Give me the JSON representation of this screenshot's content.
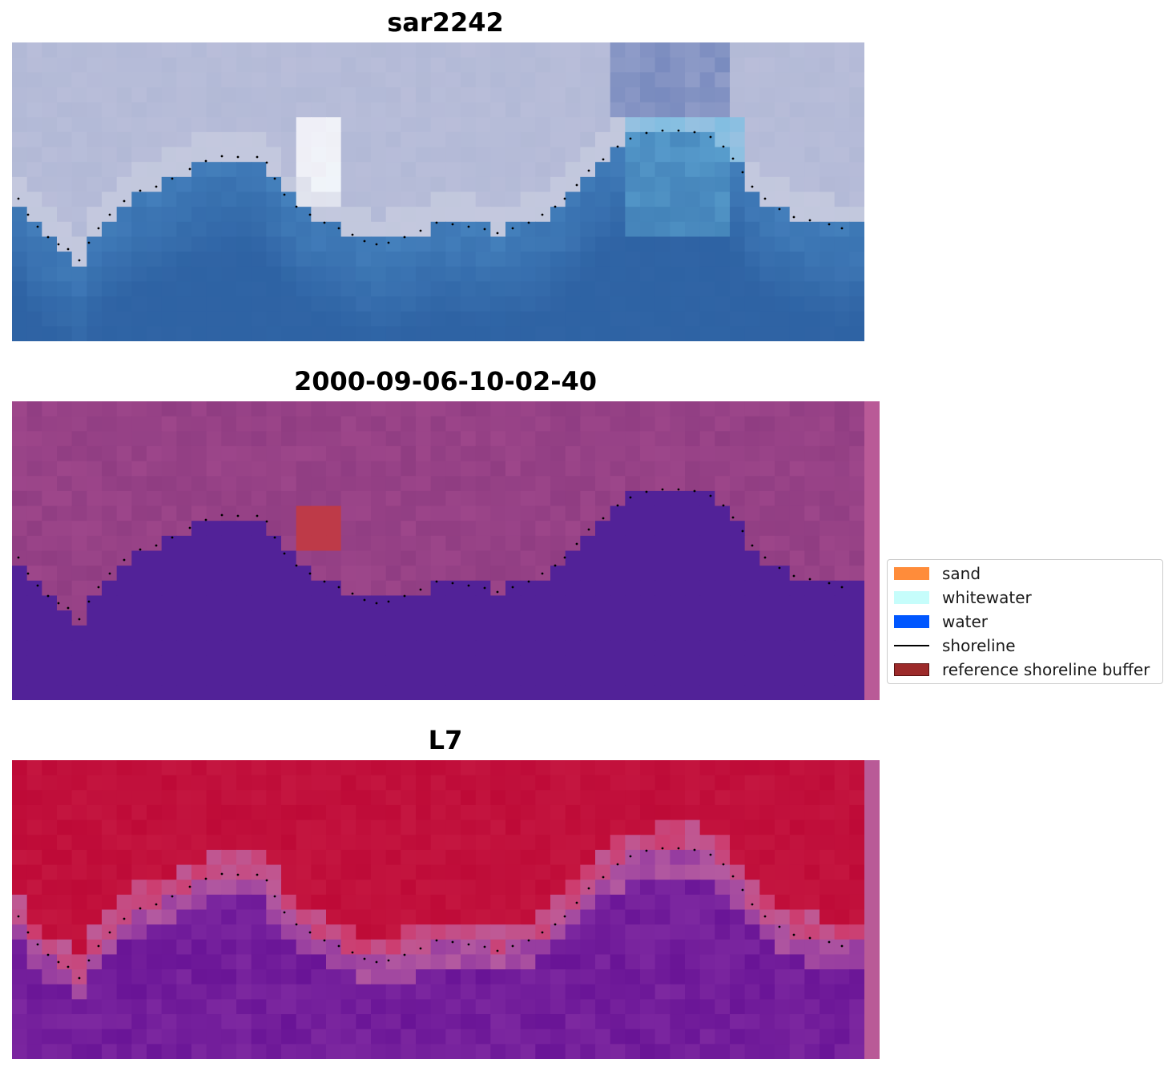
{
  "panels": [
    {
      "title": "sar2242",
      "kind": "rgb"
    },
    {
      "title": "2000-09-06-10-02-40",
      "kind": "classification"
    },
    {
      "title": "L7",
      "kind": "index"
    }
  ],
  "legend": {
    "items": [
      {
        "label": "sand",
        "color": "#ff8c3a",
        "kind": "patch"
      },
      {
        "label": "whitewater",
        "color": "#c6fdfb",
        "kind": "patch"
      },
      {
        "label": "water",
        "color": "#0057ff",
        "kind": "patch"
      },
      {
        "label": "shoreline",
        "color": "#000000",
        "kind": "line"
      },
      {
        "label": "reference shoreline buffer",
        "color": "#9c2a2a",
        "kind": "patch"
      }
    ]
  }
}
